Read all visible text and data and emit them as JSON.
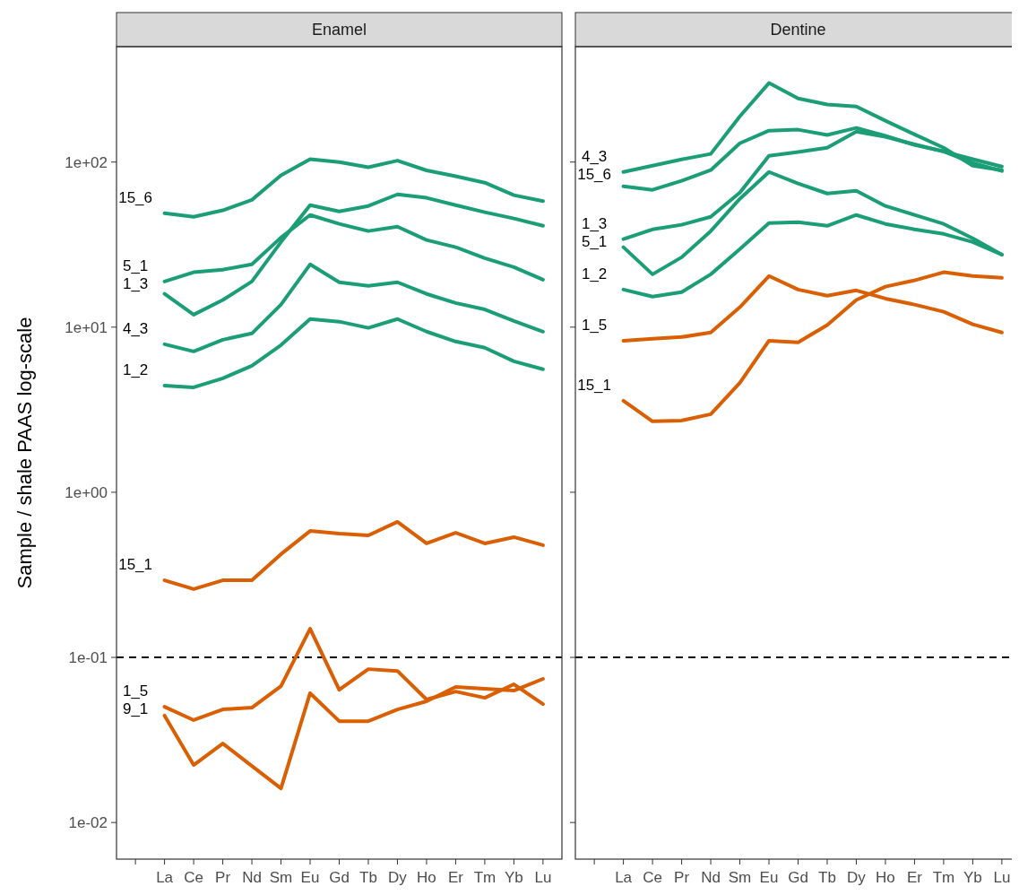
{
  "chart_data": [
    {
      "type": "line",
      "title": "Enamel",
      "ylabel": "Sample / shale PAAS log-scale",
      "log": true,
      "grid": false,
      "categories": [
        null,
        "La",
        "Ce",
        "Pr",
        "Nd",
        "Sm",
        "Eu",
        "Gd",
        "Tb",
        "Dy",
        "Ho",
        "Er",
        "Tm",
        "Yb",
        "Lu"
      ],
      "ylim": [
        0.006,
        500
      ],
      "yticks": [
        {
          "value": 0.01,
          "label": "1e-02"
        },
        {
          "value": 0.1,
          "label": "1e-01"
        },
        {
          "value": 1,
          "label": "1e+00"
        },
        {
          "value": 10,
          "label": "1e+01"
        },
        {
          "value": 100,
          "label": "1e+02"
        }
      ],
      "ref_lines": [
        {
          "axis": "y",
          "value": 0.1,
          "color": "#000000",
          "line_style": "dashed"
        }
      ],
      "series": [
        {
          "name": "15_6",
          "color": "#1b9e77",
          "values": [
            null,
            49,
            46.6,
            51,
            59,
            83,
            104,
            100,
            93,
            102,
            89,
            82,
            75,
            63,
            58
          ]
        },
        {
          "name": "5_1",
          "color": "#1b9e77",
          "values": [
            null,
            18.9,
            21.5,
            22.3,
            24.0,
            34.9,
            47.8,
            42.2,
            38.2,
            40.6,
            33.7,
            30.5,
            26.2,
            23.1,
            19.4
          ]
        },
        {
          "name": "1_3",
          "color": "#1b9e77",
          "values": [
            null,
            15.9,
            11.9,
            14.6,
            18.9,
            32.8,
            54.8,
            50.2,
            54.2,
            63.7,
            60.7,
            54.8,
            49.7,
            45.5,
            41.1
          ]
        },
        {
          "name": "4_3",
          "color": "#1b9e77",
          "values": [
            null,
            7.88,
            7.13,
            8.39,
            9.16,
            13.7,
            24.0,
            18.7,
            17.8,
            18.7,
            15.9,
            14.0,
            12.8,
            10.9,
            9.4
          ]
        },
        {
          "name": "1_2",
          "color": "#1b9e77",
          "values": [
            null,
            4.43,
            4.32,
            4.9,
            5.84,
            7.79,
            11.2,
            10.8,
            9.9,
            11.2,
            9.4,
            8.19,
            7.5,
            6.21,
            5.56
          ]
        },
        {
          "name": "15_1",
          "color": "#d95f02",
          "values": [
            null,
            0.293,
            0.259,
            0.293,
            0.293,
            0.422,
            0.583,
            0.562,
            0.548,
            0.662,
            0.49,
            0.569,
            0.49,
            0.535,
            0.478
          ]
        },
        {
          "name": "1_5",
          "color": "#d95f02",
          "values": [
            null,
            0.0502,
            0.0417,
            0.0484,
            0.0496,
            0.067,
            0.149,
            0.0637,
            0.0849,
            0.0828,
            0.0556,
            0.0621,
            0.0569,
            0.0687,
            0.0521
          ]
        },
        {
          "name": "9_1",
          "color": "#d95f02",
          "values": [
            null,
            0.0444,
            0.0223,
            0.0301,
            0.022,
            0.0161,
            0.0607,
            0.0411,
            0.0411,
            0.0484,
            0.0542,
            0.0662,
            0.0646,
            0.0629,
            0.0741
          ]
        }
      ]
    },
    {
      "type": "line",
      "title": "Dentine",
      "log": true,
      "grid": false,
      "tick_labels": "x",
      "categories": [
        null,
        "La",
        "Ce",
        "Pr",
        "Nd",
        "Sm",
        "Eu",
        "Gd",
        "Tb",
        "Dy",
        "Ho",
        "Er",
        "Tm",
        "Yb",
        "Lu"
      ],
      "ylim": [
        0.006,
        500
      ],
      "yticks": [
        {
          "value": 0.01,
          "label": null
        },
        {
          "value": 0.1,
          "label": null
        },
        {
          "value": 1,
          "label": null
        },
        {
          "value": 10,
          "label": null
        },
        {
          "value": 100,
          "label": null
        }
      ],
      "ref_lines": [
        {
          "axis": "y",
          "value": 0.1,
          "color": "#000000",
          "line_style": "dashed"
        }
      ],
      "series": [
        {
          "name": "4_3",
          "color": "#1b9e77",
          "values": [
            null,
            87.1,
            95.1,
            103.8,
            112,
            189,
            301,
            243,
            223,
            217,
            178,
            147,
            122,
            95.1,
            89.3
          ]
        },
        {
          "name": "15_6",
          "color": "#1b9e77",
          "values": [
            null,
            71.3,
            67.9,
            76.9,
            89.3,
            130,
            155,
            157,
            146,
            161,
            144,
            127,
            116,
            104,
            93.9
          ]
        },
        {
          "name": "1_3",
          "color": "#1b9e77",
          "values": [
            null,
            34.1,
            39.1,
            41.7,
            46.6,
            65.3,
            109,
            115,
            122,
            153,
            142,
            128,
            116,
            98.8,
            88.3
          ]
        },
        {
          "name": "5_1",
          "color": "#1b9e77",
          "values": [
            null,
            30.5,
            20.9,
            26.5,
            38.2,
            59.9,
            87.1,
            74.1,
            64.5,
            67,
            54.2,
            47.8,
            42.2,
            34.5,
            27.5
          ]
        },
        {
          "name": "1_2",
          "color": "#1b9e77",
          "values": [
            null,
            16.9,
            15.3,
            16.3,
            20.9,
            29.7,
            42.7,
            43.2,
            41.1,
            47.8,
            42.2,
            39.1,
            36.7,
            32.8,
            27.5
          ]
        },
        {
          "name": "1_5",
          "color": "#d95f02",
          "values": [
            null,
            8.28,
            8.5,
            8.71,
            9.28,
            13.2,
            20.4,
            16.9,
            15.5,
            16.7,
            14.9,
            13.7,
            12.4,
            10.4,
            9.28
          ]
        },
        {
          "name": "15_1",
          "color": "#d95f02",
          "values": [
            null,
            3.58,
            2.69,
            2.72,
            2.97,
            4.6,
            8.28,
            8.09,
            10.3,
            14.6,
            17.6,
            19.2,
            21.5,
            20.4,
            19.9
          ]
        }
      ]
    }
  ]
}
